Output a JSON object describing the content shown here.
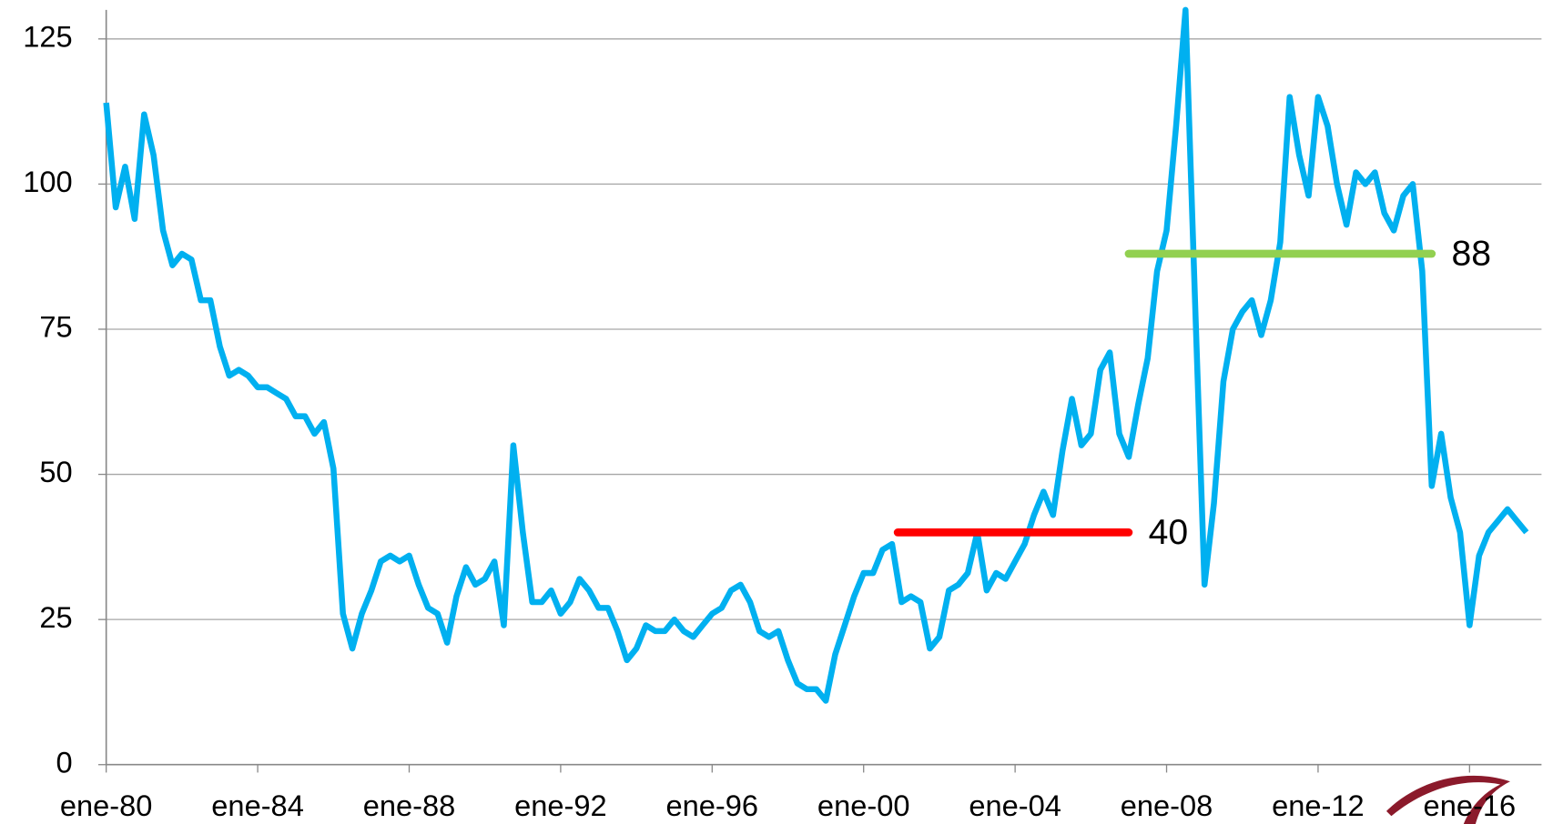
{
  "chart_data": {
    "type": "line",
    "x": [
      1980.0,
      1980.25,
      1980.5,
      1980.75,
      1981.0,
      1981.25,
      1981.5,
      1981.75,
      1982.0,
      1982.25,
      1982.5,
      1982.75,
      1983.0,
      1983.25,
      1983.5,
      1983.75,
      1984.0,
      1984.25,
      1984.5,
      1984.75,
      1985.0,
      1985.25,
      1985.5,
      1985.75,
      1986.0,
      1986.25,
      1986.5,
      1986.75,
      1987.0,
      1987.25,
      1987.5,
      1987.75,
      1988.0,
      1988.25,
      1988.5,
      1988.75,
      1989.0,
      1989.25,
      1989.5,
      1989.75,
      1990.0,
      1990.25,
      1990.5,
      1990.75,
      1991.0,
      1991.25,
      1991.5,
      1991.75,
      1992.0,
      1992.25,
      1992.5,
      1992.75,
      1993.0,
      1993.25,
      1993.5,
      1993.75,
      1994.0,
      1994.25,
      1994.5,
      1994.75,
      1995.0,
      1995.25,
      1995.5,
      1995.75,
      1996.0,
      1996.25,
      1996.5,
      1996.75,
      1997.0,
      1997.25,
      1997.5,
      1997.75,
      1998.0,
      1998.25,
      1998.5,
      1998.75,
      1999.0,
      1999.25,
      1999.5,
      1999.75,
      2000.0,
      2000.25,
      2000.5,
      2000.75,
      2001.0,
      2001.25,
      2001.5,
      2001.75,
      2002.0,
      2002.25,
      2002.5,
      2002.75,
      2003.0,
      2003.25,
      2003.5,
      2003.75,
      2004.0,
      2004.25,
      2004.5,
      2004.75,
      2005.0,
      2005.25,
      2005.5,
      2005.75,
      2006.0,
      2006.25,
      2006.5,
      2006.75,
      2007.0,
      2007.25,
      2007.5,
      2007.75,
      2008.0,
      2008.25,
      2008.5,
      2008.75,
      2009.0,
      2009.25,
      2009.5,
      2009.75,
      2010.0,
      2010.25,
      2010.5,
      2010.75,
      2011.0,
      2011.25,
      2011.5,
      2011.75,
      2012.0,
      2012.25,
      2012.5,
      2012.75,
      2013.0,
      2013.25,
      2013.5,
      2013.75,
      2014.0,
      2014.25,
      2014.5,
      2014.75,
      2015.0,
      2015.25,
      2015.5,
      2015.75,
      2016.0,
      2016.25,
      2016.5,
      2016.75,
      2017.0,
      2017.25,
      2017.5
    ],
    "series": [
      {
        "color": "#00b0f0",
        "values": [
          114,
          96,
          103,
          94,
          112,
          105,
          92,
          86,
          88,
          87,
          80,
          80,
          72,
          67,
          68,
          67,
          65,
          65,
          64,
          63,
          60,
          60,
          57,
          59,
          51,
          26,
          20,
          26,
          30,
          35,
          36,
          35,
          36,
          31,
          27,
          26,
          21,
          29,
          34,
          31,
          32,
          35,
          24,
          55,
          40,
          28,
          28,
          30,
          26,
          28,
          32,
          30,
          27,
          27,
          23,
          18,
          20,
          24,
          23,
          23,
          25,
          23,
          22,
          24,
          26,
          27,
          30,
          31,
          28,
          23,
          22,
          23,
          18,
          14,
          13,
          13,
          11,
          19,
          24,
          29,
          33,
          33,
          37,
          38,
          28,
          29,
          28,
          20,
          22,
          30,
          31,
          33,
          40,
          30,
          33,
          32,
          35,
          38,
          43,
          47,
          43,
          54,
          63,
          55,
          57,
          68,
          71,
          57,
          53,
          62,
          70,
          85,
          92,
          110,
          130,
          80,
          31,
          45,
          66,
          75,
          78,
          80,
          74,
          80,
          90,
          115,
          105,
          98,
          115,
          110,
          100,
          93,
          102,
          100,
          102,
          95,
          92,
          98,
          100,
          85,
          48,
          57,
          46,
          40,
          24,
          36,
          40,
          42,
          44,
          42,
          40
        ]
      }
    ],
    "levels": [
      {
        "value": 40,
        "x": [
          2000.9,
          2007.0
        ],
        "color": "#ff0000"
      },
      {
        "value": 88,
        "x": [
          2007.0,
          2015.0
        ],
        "color": "#92d050"
      }
    ],
    "xlim": [
      1980,
      2017.9
    ],
    "xticks": [
      {
        "value": 1980,
        "label": "ene-80"
      },
      {
        "value": 1984,
        "label": "ene-84"
      },
      {
        "value": 1988,
        "label": "ene-88"
      },
      {
        "value": 1992,
        "label": "ene-92"
      },
      {
        "value": 1996,
        "label": "ene-96"
      },
      {
        "value": 2000,
        "label": "ene-00"
      },
      {
        "value": 2004,
        "label": "ene-04"
      },
      {
        "value": 2008,
        "label": "ene-08"
      },
      {
        "value": 2012,
        "label": "ene-12"
      },
      {
        "value": 2016,
        "label": "ene-16"
      }
    ],
    "ylim": [
      0,
      130
    ],
    "yticks": [
      0,
      25,
      50,
      75,
      100,
      125
    ],
    "grid": true
  }
}
